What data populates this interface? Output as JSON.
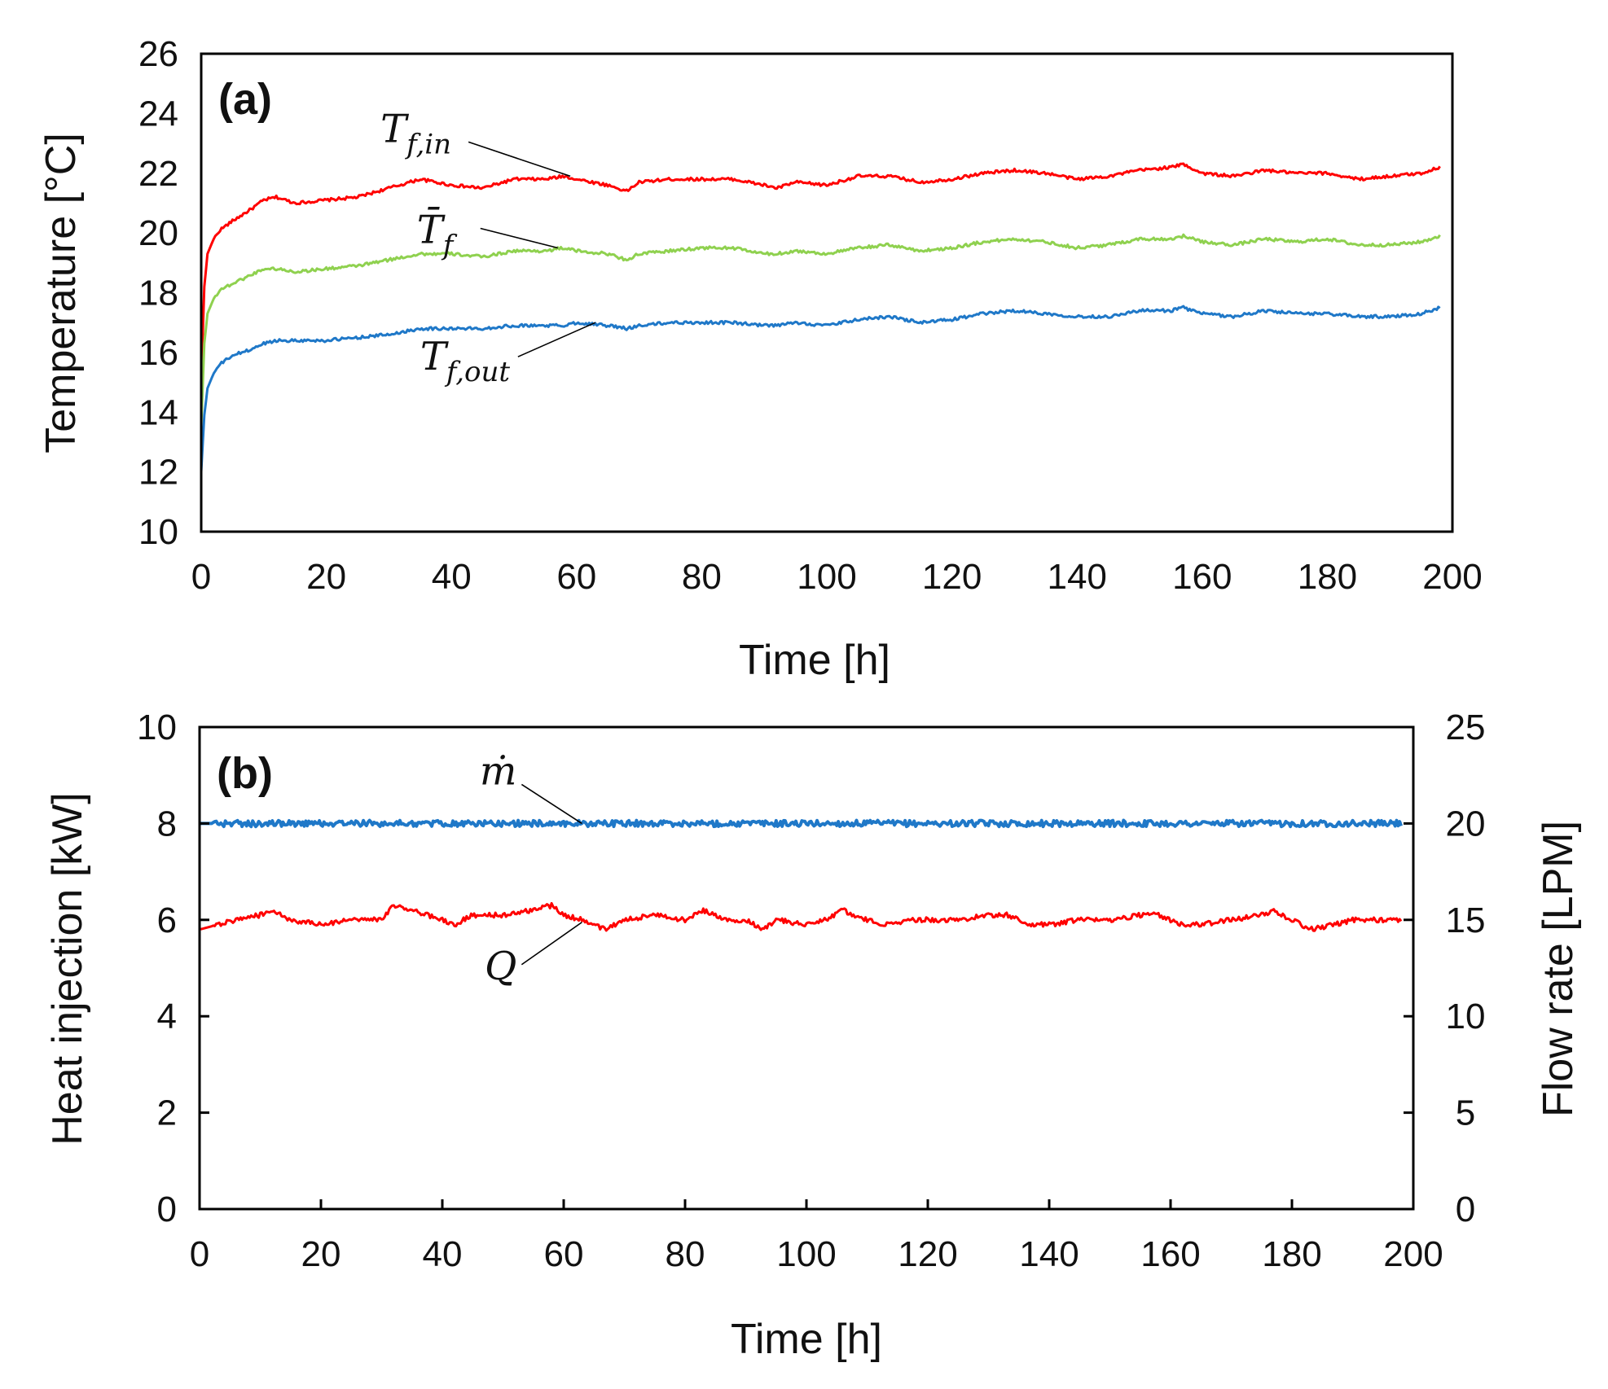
{
  "chart_data": [
    {
      "panel_label": "(a)",
      "type": "line",
      "xlabel": "Time [h]",
      "ylabel": "Temperature [°C]",
      "xlim": [
        0,
        200
      ],
      "ylim": [
        10,
        26
      ],
      "xticks": [
        0,
        20,
        40,
        60,
        80,
        100,
        120,
        140,
        160,
        180,
        200
      ],
      "yticks": [
        10,
        12,
        14,
        16,
        18,
        20,
        22,
        24,
        26
      ],
      "grid": false,
      "series": [
        {
          "name": "T_f,in",
          "color": "#ff0000",
          "x": [
            0,
            0.5,
            1,
            2,
            3,
            5,
            8,
            10,
            12,
            15,
            20,
            25,
            30,
            35,
            40,
            45,
            50,
            55,
            58,
            60,
            65,
            68,
            70,
            75,
            80,
            85,
            90,
            92,
            95,
            100,
            105,
            110,
            115,
            120,
            125,
            130,
            135,
            140,
            145,
            150,
            155,
            157,
            160,
            165,
            170,
            175,
            180,
            185,
            190,
            195,
            198
          ],
          "y": [
            15.0,
            18.2,
            19.3,
            19.8,
            20.1,
            20.4,
            20.8,
            21.1,
            21.2,
            21.0,
            21.1,
            21.2,
            21.5,
            21.8,
            21.6,
            21.5,
            21.8,
            21.8,
            21.9,
            21.8,
            21.6,
            21.4,
            21.7,
            21.8,
            21.8,
            21.8,
            21.6,
            21.5,
            21.7,
            21.6,
            21.9,
            21.9,
            21.7,
            21.8,
            22.0,
            22.1,
            22.0,
            21.8,
            21.9,
            22.1,
            22.2,
            22.3,
            22.0,
            21.9,
            22.1,
            22.0,
            22.0,
            21.8,
            21.9,
            22.0,
            22.2
          ]
        },
        {
          "name": "T̄_f",
          "color": "#8fd14f",
          "x": [
            0,
            0.5,
            1,
            2,
            3,
            5,
            8,
            10,
            12,
            15,
            20,
            25,
            30,
            35,
            40,
            45,
            50,
            55,
            58,
            60,
            65,
            68,
            70,
            75,
            80,
            85,
            90,
            92,
            95,
            100,
            105,
            110,
            115,
            120,
            125,
            130,
            135,
            140,
            145,
            150,
            155,
            157,
            160,
            165,
            170,
            175,
            180,
            185,
            190,
            195,
            198
          ],
          "y": [
            13.5,
            16.3,
            17.3,
            17.8,
            18.1,
            18.3,
            18.6,
            18.8,
            18.8,
            18.7,
            18.8,
            18.9,
            19.1,
            19.3,
            19.3,
            19.2,
            19.4,
            19.4,
            19.5,
            19.4,
            19.3,
            19.1,
            19.3,
            19.4,
            19.5,
            19.5,
            19.3,
            19.3,
            19.4,
            19.3,
            19.5,
            19.6,
            19.4,
            19.5,
            19.7,
            19.8,
            19.7,
            19.5,
            19.6,
            19.8,
            19.8,
            19.9,
            19.7,
            19.6,
            19.8,
            19.7,
            19.8,
            19.6,
            19.6,
            19.7,
            19.9
          ]
        },
        {
          "name": "T_f,out",
          "color": "#1f78c8",
          "x": [
            0,
            0.5,
            1,
            2,
            3,
            5,
            8,
            10,
            12,
            15,
            20,
            25,
            30,
            35,
            40,
            45,
            50,
            55,
            58,
            60,
            65,
            68,
            70,
            75,
            80,
            85,
            90,
            92,
            95,
            100,
            105,
            110,
            115,
            120,
            125,
            130,
            135,
            140,
            145,
            150,
            155,
            157,
            160,
            165,
            170,
            175,
            180,
            185,
            190,
            195,
            198
          ],
          "y": [
            12.0,
            13.9,
            14.8,
            15.3,
            15.6,
            15.9,
            16.1,
            16.3,
            16.4,
            16.4,
            16.4,
            16.5,
            16.6,
            16.8,
            16.8,
            16.8,
            16.9,
            16.9,
            16.9,
            17.0,
            16.9,
            16.8,
            16.9,
            17.0,
            17.0,
            17.0,
            16.9,
            16.9,
            17.0,
            16.9,
            17.1,
            17.2,
            17.0,
            17.1,
            17.3,
            17.4,
            17.3,
            17.2,
            17.2,
            17.4,
            17.4,
            17.5,
            17.3,
            17.2,
            17.4,
            17.3,
            17.3,
            17.2,
            17.2,
            17.3,
            17.5
          ]
        }
      ],
      "annotations": [
        {
          "label": "T",
          "sub": "f,in",
          "series": "T_f,in",
          "x": 59,
          "y": 21.9
        },
        {
          "label": "T̄",
          "sub": "f",
          "series": "T̄_f",
          "x": 57,
          "y": 19.5
        },
        {
          "label": "T",
          "sub": "f,out",
          "series": "T_f,out",
          "x": 63,
          "y": 17.0
        }
      ]
    },
    {
      "panel_label": "(b)",
      "type": "line",
      "xlabel": "Time [h]",
      "ylabel": "Heat injection [kW]",
      "y2label": "Flow rate [LPM]",
      "xlim": [
        0,
        200
      ],
      "ylim": [
        0,
        10
      ],
      "y2lim": [
        0,
        25
      ],
      "xticks": [
        0,
        20,
        40,
        60,
        80,
        100,
        120,
        140,
        160,
        180,
        200
      ],
      "yticks": [
        0,
        2,
        4,
        6,
        8,
        10
      ],
      "y2ticks": [
        0,
        5,
        10,
        15,
        20,
        25
      ],
      "grid": false,
      "series": [
        {
          "name": "ṁ",
          "axis": "right",
          "color": "#1f78c8",
          "x": [
            0,
            10,
            20,
            30,
            40,
            50,
            60,
            70,
            80,
            90,
            100,
            110,
            120,
            130,
            140,
            150,
            160,
            170,
            180,
            190,
            198
          ],
          "y": [
            20.0,
            20.0,
            20.0,
            20.0,
            20.0,
            20.0,
            20.0,
            20.0,
            20.0,
            20.0,
            20.0,
            20.0,
            20.0,
            20.0,
            20.0,
            20.0,
            20.0,
            20.0,
            20.0,
            20.0,
            20.0
          ]
        },
        {
          "name": "Q",
          "axis": "left",
          "color": "#ff0000",
          "x": [
            0,
            3,
            6,
            10,
            12,
            15,
            20,
            25,
            30,
            32,
            35,
            40,
            42,
            45,
            50,
            55,
            58,
            60,
            63,
            67,
            70,
            75,
            80,
            83,
            87,
            90,
            93,
            95,
            100,
            103,
            106,
            110,
            113,
            117,
            120,
            125,
            130,
            133,
            137,
            140,
            145,
            150,
            155,
            158,
            162,
            165,
            170,
            175,
            177,
            180,
            183,
            187,
            190,
            195,
            198
          ],
          "y": [
            5.8,
            5.9,
            6.0,
            6.1,
            6.2,
            6.0,
            5.9,
            6.0,
            6.0,
            6.3,
            6.2,
            6.0,
            5.9,
            6.1,
            6.1,
            6.2,
            6.3,
            6.1,
            6.0,
            5.8,
            6.0,
            6.1,
            6.0,
            6.2,
            6.0,
            6.0,
            5.8,
            6.0,
            5.9,
            6.0,
            6.2,
            6.0,
            5.9,
            6.0,
            6.0,
            6.0,
            6.1,
            6.1,
            5.9,
            5.9,
            6.0,
            6.0,
            6.1,
            6.1,
            5.9,
            5.9,
            6.0,
            6.1,
            6.2,
            6.0,
            5.8,
            5.9,
            6.0,
            6.0,
            6.0
          ]
        }
      ],
      "annotations": [
        {
          "label": "ṁ",
          "series": "ṁ",
          "x": 63,
          "y": 20.0
        },
        {
          "label": "Q",
          "series": "Q",
          "x": 63,
          "y": 5.95
        }
      ]
    }
  ]
}
